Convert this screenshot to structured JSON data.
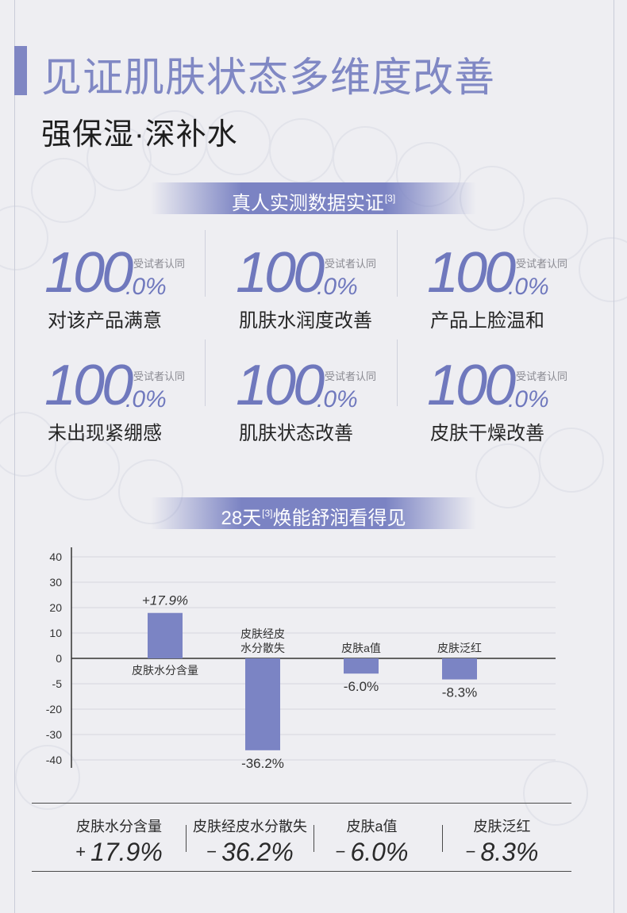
{
  "header": {
    "title": "见证肌肤状态多维度改善",
    "subtitle": "强保湿·深补水"
  },
  "section1": {
    "ribbon": "真人实测数据实证",
    "ribbon_ref": "[3]",
    "stats": [
      {
        "value_int": "100",
        "value_dec": ".0%",
        "tag": "受试者认同",
        "desc": "对该产品满意"
      },
      {
        "value_int": "100",
        "value_dec": ".0%",
        "tag": "受试者认同",
        "desc": "肌肤水润度改善"
      },
      {
        "value_int": "100",
        "value_dec": ".0%",
        "tag": "受试者认同",
        "desc": "产品上脸温和"
      },
      {
        "value_int": "100",
        "value_dec": ".0%",
        "tag": "受试者认同",
        "desc": "未出现紧绷感"
      },
      {
        "value_int": "100",
        "value_dec": ".0%",
        "tag": "受试者认同",
        "desc": "肌肤状态改善"
      },
      {
        "value_int": "100",
        "value_dec": ".0%",
        "tag": "受试者认同",
        "desc": "皮肤干燥改善"
      }
    ]
  },
  "section2": {
    "ribbon_pre": "28天",
    "ribbon_ref": "[3]",
    "ribbon_post": "焕能舒润看得见"
  },
  "chart_data": {
    "type": "bar",
    "categories": [
      "皮肤水分含量",
      "皮肤经皮水分散失",
      "皮肤a值",
      "皮肤泛红"
    ],
    "category_lines": [
      [
        "皮肤水分含量"
      ],
      [
        "皮肤经皮",
        "水分散失"
      ],
      [
        "皮肤a值"
      ],
      [
        "皮肤泛红"
      ]
    ],
    "values": [
      17.9,
      -36.2,
      -6.0,
      -8.3
    ],
    "value_labels": [
      "+17.9%",
      "-36.2%",
      "-6.0%",
      "-8.3%"
    ],
    "y_ticks": [
      "40",
      "30",
      "20",
      "10",
      "0",
      "-5",
      "-20",
      "-30",
      "-40"
    ],
    "ylim": [
      -40,
      40
    ],
    "grid": true,
    "bar_color": "#7b84c4"
  },
  "summary": [
    {
      "label": "皮肤水分含量",
      "sign": "+",
      "value": "17.9%"
    },
    {
      "label": "皮肤经皮水分散失",
      "sign": "−",
      "value": "36.2%"
    },
    {
      "label": "皮肤a值",
      "sign": "−",
      "value": "6.0%"
    },
    {
      "label": "皮肤泛红",
      "sign": "−",
      "value": "8.3%"
    }
  ],
  "colors": {
    "accent": "#7f86c3",
    "number": "#6f78bd",
    "background": "#eeeef2"
  }
}
